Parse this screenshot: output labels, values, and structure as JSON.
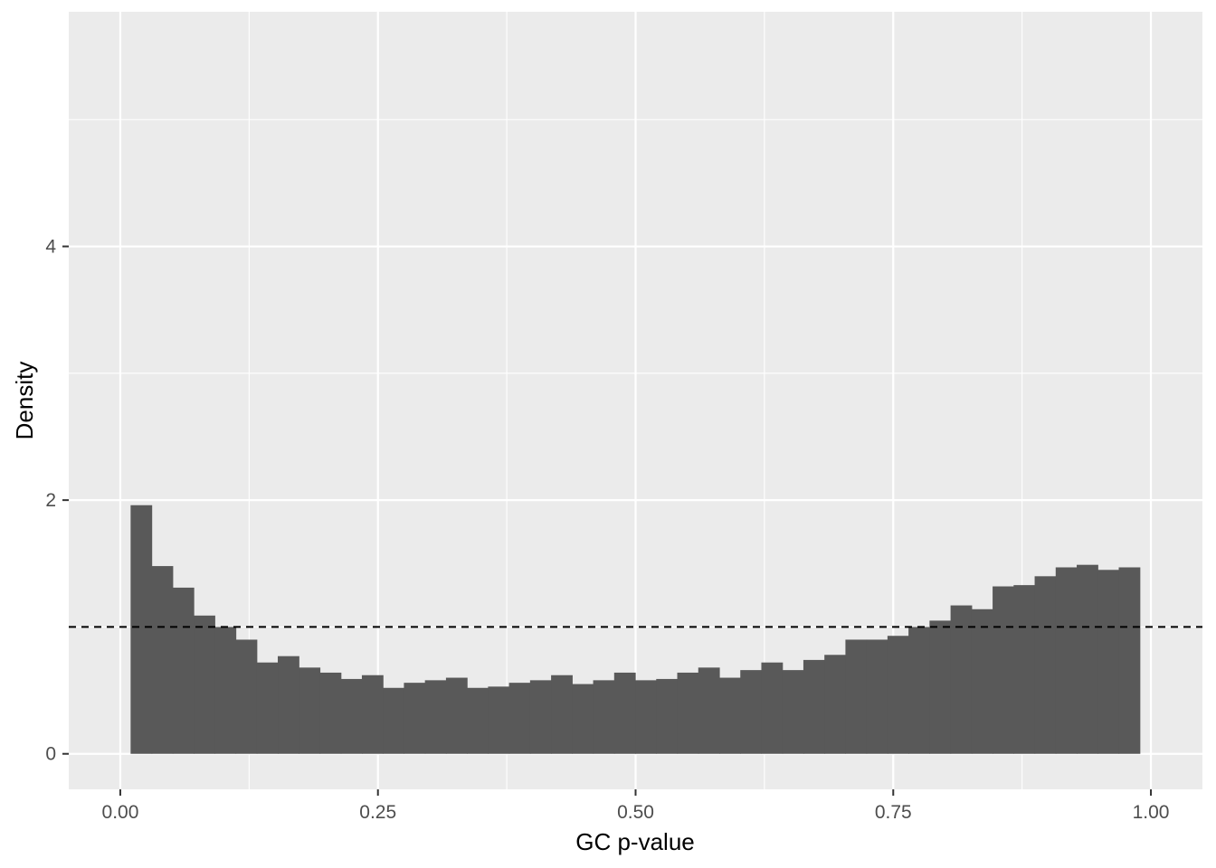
{
  "chart_data": {
    "type": "bar",
    "subtype": "histogram",
    "title": "",
    "xlabel": "GC p-value",
    "ylabel": "Density",
    "xlim": [
      -0.05,
      1.05
    ],
    "ylim": [
      -0.28,
      5.85
    ],
    "x_ticks": [
      0.0,
      0.25,
      0.5,
      0.75,
      1.0
    ],
    "x_tick_labels": [
      "0.00",
      "0.25",
      "0.50",
      "0.75",
      "1.00"
    ],
    "y_ticks": [
      0,
      2,
      4
    ],
    "y_tick_labels": [
      "0",
      "2",
      "4"
    ],
    "grid": true,
    "bin_start": 0.01,
    "bin_width": 0.0204,
    "values": [
      1.96,
      1.48,
      1.31,
      1.09,
      1.0,
      0.9,
      0.72,
      0.77,
      0.68,
      0.64,
      0.59,
      0.62,
      0.52,
      0.56,
      0.58,
      0.6,
      0.52,
      0.53,
      0.56,
      0.58,
      0.62,
      0.55,
      0.58,
      0.64,
      0.58,
      0.59,
      0.64,
      0.68,
      0.6,
      0.66,
      0.72,
      0.66,
      0.74,
      0.78,
      0.9,
      0.9,
      0.93,
      1.0,
      1.05,
      1.17,
      1.14,
      1.32,
      1.33,
      1.4,
      1.47,
      1.49,
      1.45,
      1.47
    ],
    "reference_line": {
      "y": 1.0,
      "style": "dashed",
      "color": "#000000"
    },
    "bar_color": "#595959",
    "panel_color": "#EBEBEB"
  }
}
